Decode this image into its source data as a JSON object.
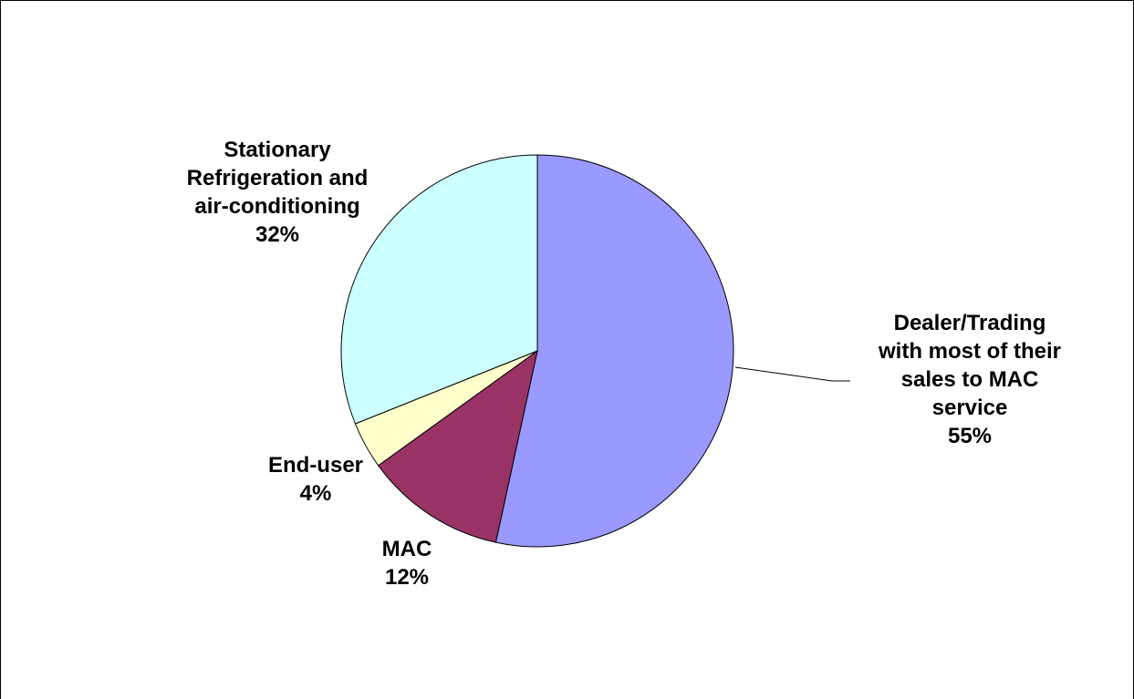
{
  "chart_data": {
    "type": "pie",
    "start_angle_deg": 0,
    "direction": "clockwise",
    "slices": [
      {
        "label_lines": [
          "Dealer/Trading",
          "with most of their",
          "sales to MAC",
          "service"
        ],
        "percent_label": "55%",
        "value": 55,
        "color": "#9999ff"
      },
      {
        "label_lines": [
          "MAC"
        ],
        "percent_label": "12%",
        "value": 12,
        "color": "#993366"
      },
      {
        "label_lines": [
          "End-user"
        ],
        "percent_label": "4%",
        "value": 4,
        "color": "#ffffcc"
      },
      {
        "label_lines": [
          "Stationary",
          "Refrigeration and",
          "air-conditioning"
        ],
        "percent_label": "32%",
        "value": 32,
        "color": "#ccffff"
      }
    ],
    "legend": "none"
  }
}
